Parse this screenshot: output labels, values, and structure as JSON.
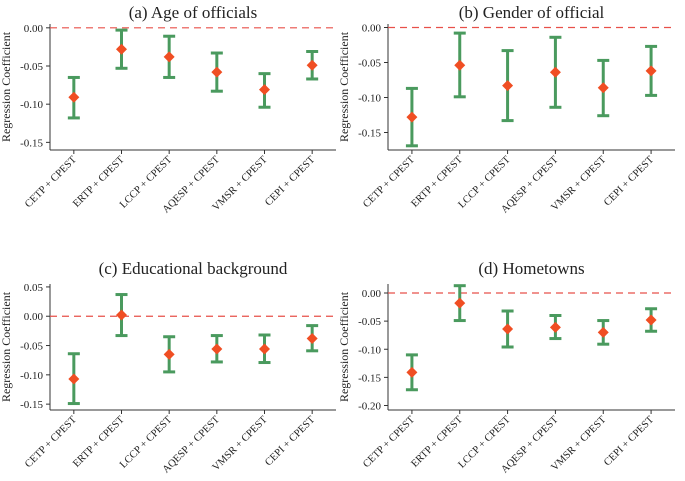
{
  "figure": {
    "colors": {
      "errorbar": "#4a9a5e",
      "point": "#f04e23",
      "refline": "#e8504a",
      "axis": "#333333"
    }
  },
  "chart_data": [
    {
      "type": "scatter",
      "title": "(a) Age of officials",
      "xlabel": "",
      "ylabel": "Regression Coefficient",
      "categories": [
        "CETP + CPEST",
        "ERTP + CPEST",
        "LCCP + CPEST",
        "AQESP + CPEST",
        "VMSR + CPEST",
        "CEPI + CPEST"
      ],
      "values": [
        -0.091,
        -0.028,
        -0.038,
        -0.058,
        -0.081,
        -0.049
      ],
      "ci_low": [
        -0.118,
        -0.053,
        -0.065,
        -0.083,
        -0.104,
        -0.067
      ],
      "ci_high": [
        -0.065,
        -0.003,
        -0.011,
        -0.033,
        -0.06,
        -0.031
      ],
      "ylim": [
        -0.16,
        0.005
      ],
      "yticks": [
        0.0,
        -0.05,
        -0.1,
        -0.15
      ],
      "ytick_labels": [
        "0.00",
        "-0.05",
        "-0.10",
        "-0.15"
      ],
      "reference_line": 0
    },
    {
      "type": "scatter",
      "title": "(b) Gender of official",
      "xlabel": "",
      "ylabel": "Regression Coefficient",
      "categories": [
        "CETP + CPEST",
        "ERTP + CPEST",
        "LCCP + CPEST",
        "AQESP + CPEST",
        "VMSR + CPEST",
        "CEPI + CPEST"
      ],
      "values": [
        -0.128,
        -0.054,
        -0.083,
        -0.064,
        -0.086,
        -0.062
      ],
      "ci_low": [
        -0.169,
        -0.099,
        -0.133,
        -0.114,
        -0.126,
        -0.097
      ],
      "ci_high": [
        -0.087,
        -0.008,
        -0.033,
        -0.014,
        -0.047,
        -0.027
      ],
      "ylim": [
        -0.175,
        0.005
      ],
      "yticks": [
        0.0,
        -0.05,
        -0.1,
        -0.15
      ],
      "ytick_labels": [
        "0.00",
        "-0.05",
        "-0.10",
        "-0.15"
      ],
      "reference_line": 0
    },
    {
      "type": "scatter",
      "title": "(c) Educational background",
      "xlabel": "",
      "ylabel": "Regression Coefficient",
      "categories": [
        "CETP + CPEST",
        "ERTP + CPEST",
        "LCCP + CPEST",
        "AQESP + CPEST",
        "VMSR + CPEST",
        "CEPI + CPEST"
      ],
      "values": [
        -0.107,
        0.002,
        -0.065,
        -0.056,
        -0.056,
        -0.038
      ],
      "ci_low": [
        -0.149,
        -0.033,
        -0.095,
        -0.078,
        -0.079,
        -0.059
      ],
      "ci_high": [
        -0.064,
        0.037,
        -0.035,
        -0.033,
        -0.032,
        -0.016
      ],
      "ylim": [
        -0.16,
        0.055
      ],
      "yticks": [
        0.05,
        0.0,
        -0.05,
        -0.1,
        -0.15
      ],
      "ytick_labels": [
        "0.05",
        "0.00",
        "-0.05",
        "-0.10",
        "-0.15"
      ],
      "reference_line": 0
    },
    {
      "type": "scatter",
      "title": "(d) Hometowns",
      "xlabel": "",
      "ylabel": "Regression Coefficient",
      "categories": [
        "CETP + CPEST",
        "ERTP + CPEST",
        "LCCP + CPEST",
        "AQESP + CPEST",
        "VMSR + CPEST",
        "CEPI + CPEST"
      ],
      "values": [
        -0.141,
        -0.018,
        -0.064,
        -0.061,
        -0.07,
        -0.048
      ],
      "ci_low": [
        -0.172,
        -0.049,
        -0.096,
        -0.081,
        -0.091,
        -0.068
      ],
      "ci_high": [
        -0.11,
        0.013,
        -0.032,
        -0.04,
        -0.049,
        -0.028
      ],
      "ylim": [
        -0.208,
        0.016
      ],
      "yticks": [
        0.0,
        -0.05,
        -0.1,
        -0.15,
        -0.2
      ],
      "ytick_labels": [
        "0.00",
        "-0.05",
        "-0.10",
        "-0.15",
        "-0.20"
      ],
      "reference_line": 0
    }
  ]
}
